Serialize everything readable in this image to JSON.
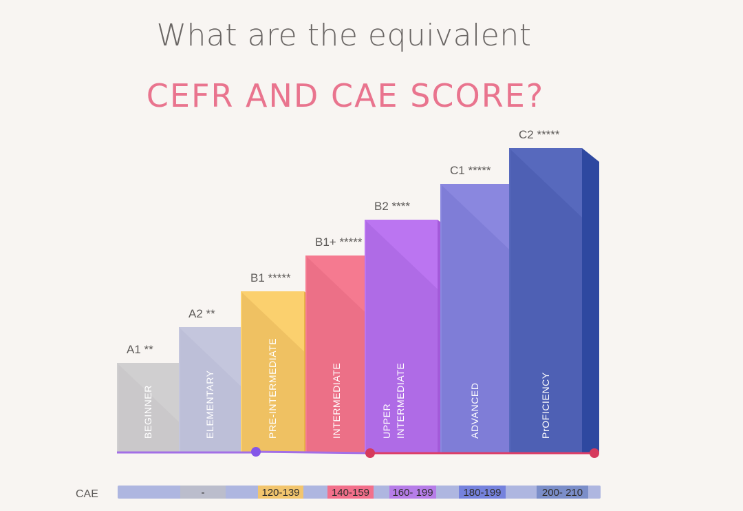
{
  "header": {
    "title": "What are the equivalent",
    "subtitle": "CEFR AND CAE SCORE?"
  },
  "chart_data": {
    "type": "bar",
    "title": "What are the equivalent CEFR AND CAE SCORE?",
    "categories": [
      "A1 **",
      "A2 **",
      "B1 *****",
      "B1+ *****",
      "B2 ****",
      "C1 *****",
      "C2 *****"
    ],
    "series": [
      {
        "levels": [
          "BEGINNER",
          "ELEMENTARY",
          "PRE-INTERMEDIATE",
          "INTERMEDIATE",
          "UPPER INTERMEDIATE",
          "ADVANCED",
          "PrOFICIENCY"
        ],
        "values": [
          1,
          2,
          3,
          4,
          5,
          6,
          7
        ]
      }
    ],
    "cae_label": "CAE",
    "cae_scores": [
      "",
      "-",
      "120-139",
      "140-159",
      "160- 199",
      "180-199",
      "200- 210"
    ],
    "colors": {
      "front": [
        "#d0cfd0",
        "#c4c6dd",
        "#fbd06e",
        "#f57a90",
        "#bb75f1",
        "#8a87df",
        "#5769bd"
      ],
      "side": [
        "#b4b3b4",
        "#aeb1cd",
        "#e8b248",
        "#e35f7b",
        "#a35ad9",
        "#7267cc",
        "#2e48a0"
      ],
      "shadow": [
        "#c4c3c4",
        "#b8bad4",
        "#e5b559",
        "#e46880",
        "#a662dc",
        "#7774d0",
        "#4759ad"
      ],
      "badge": [
        "#b0b5db",
        "#bbbdcc",
        "#f2c56e",
        "#f2708b",
        "#b67de8",
        "#7582dd",
        "#7b8ec9"
      ],
      "strip": "#aeb6e0",
      "baseline_left": "#a36fe6",
      "baseline_right": "#dd3e68",
      "dot_purple": "#8456e8",
      "dot_red": "#d63a5c"
    },
    "grid": false,
    "legend": "none"
  }
}
